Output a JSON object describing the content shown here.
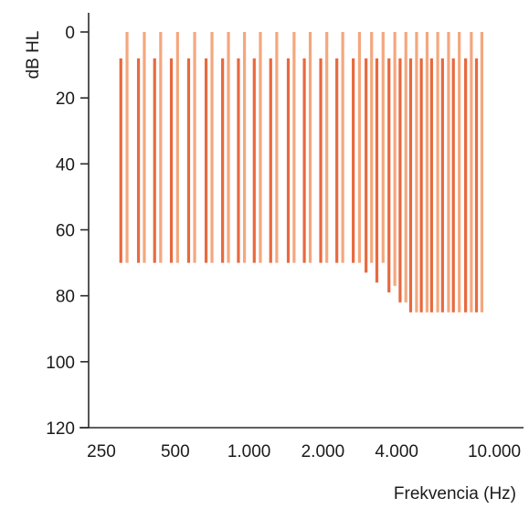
{
  "chart_data": {
    "type": "bar",
    "title": "",
    "xlabel": "Frekvencia (Hz)",
    "ylabel": "dB HL",
    "x_scale": "log",
    "y_inverted": true,
    "xlim": [
      250,
      12000
    ],
    "ylim": [
      0,
      120
    ],
    "x_ticks": [
      250,
      500,
      1000,
      2000,
      4000,
      10000
    ],
    "x_tick_labels": [
      "250",
      "500",
      "1.000",
      "2.000",
      "4.000",
      "10.000"
    ],
    "y_ticks": [
      0,
      20,
      40,
      60,
      80,
      100,
      120
    ],
    "y_tick_labels": [
      "0",
      "20",
      "40",
      "60",
      "80",
      "100",
      "120"
    ],
    "grid": false,
    "legend": "none",
    "series": [
      {
        "color": "#e8693f",
        "x": [
          300,
          354,
          412,
          482,
          567,
          668,
          780,
          905,
          1050,
          1225,
          1445,
          1680,
          1960,
          2280,
          2660,
          3000,
          3320,
          3720,
          4130,
          4560,
          5040,
          5550,
          6150,
          6810,
          7640,
          8460
        ],
        "from": [
          8,
          8,
          8,
          8,
          8,
          8,
          8,
          8,
          8,
          8,
          8,
          8,
          8,
          8,
          8,
          8,
          8,
          8,
          8,
          8,
          8,
          8,
          8,
          8,
          8,
          8
        ],
        "to": [
          70,
          70,
          70,
          70,
          70,
          70,
          70,
          70,
          70,
          70,
          70,
          70,
          70,
          70,
          70,
          73,
          76,
          79,
          82,
          85,
          85,
          85,
          85,
          85,
          85,
          85
        ]
      },
      {
        "color": "#f4a77e",
        "x": [
          318,
          374,
          436,
          511,
          600,
          706,
          824,
          958,
          1112,
          1297,
          1526,
          1776,
          2075,
          2410,
          2820,
          3160,
          3520,
          3930,
          4360,
          4820,
          5320,
          5880,
          6510,
          7200,
          8060,
          8900
        ],
        "from": [
          0,
          0,
          0,
          0,
          0,
          0,
          0,
          0,
          0,
          0,
          0,
          0,
          0,
          0,
          0,
          0,
          0,
          0,
          0,
          0,
          0,
          0,
          0,
          0,
          0,
          0
        ],
        "to": [
          70,
          70,
          70,
          70,
          70,
          70,
          70,
          70,
          70,
          70,
          70,
          70,
          70,
          70,
          70,
          70,
          70,
          77,
          82,
          85,
          85,
          85,
          85,
          85,
          85,
          85
        ]
      }
    ]
  }
}
